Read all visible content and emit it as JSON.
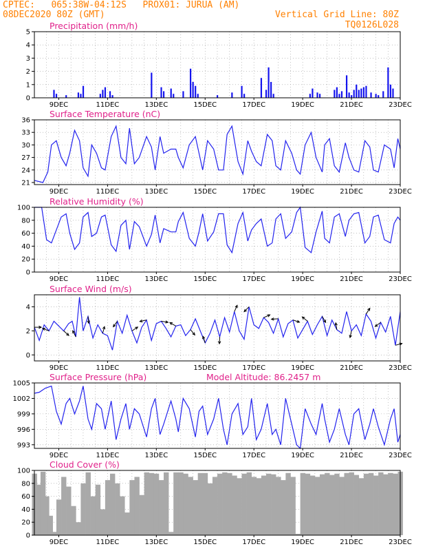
{
  "header": {
    "line1_left": "CPTEC:   065:38W-04:12S   PROX01: JURUA (AM)",
    "line2_left": "08DEC2020 80Z (GMT)",
    "line2_right": "Vertical Grid Line: 80Z",
    "line3_right": "TQ0126L028"
  },
  "colors": {
    "header": "#ff8000",
    "title": "#e0218a",
    "series": "#2222ee",
    "cloud": "#a9a9a9"
  },
  "chart_data": [
    {
      "type": "bar",
      "title": "Precipitation (mm/h)",
      "xticks": [
        "9DEC",
        "11DEC",
        "13DEC",
        "15DEC",
        "17DEC",
        "19DEC",
        "21DEC",
        "23DEC"
      ],
      "ylim": [
        0,
        5
      ],
      "yticks": [
        "0",
        "1",
        "2",
        "3",
        "4",
        "5"
      ],
      "x_days": [
        8.8,
        8.9,
        9.3,
        9.8,
        9.9,
        10.0,
        10.7,
        10.8,
        10.9,
        11.1,
        11.2,
        12.8,
        13.2,
        13.3,
        13.6,
        13.7,
        14.1,
        14.4,
        14.5,
        14.6,
        14.7,
        15.5,
        16.1,
        16.5,
        16.6,
        17.3,
        17.5,
        17.6,
        17.7,
        17.8,
        19.3,
        19.4,
        19.6,
        19.7,
        20.3,
        20.4,
        20.5,
        20.6,
        20.8,
        20.9,
        21.0,
        21.1,
        21.2,
        21.3,
        21.4,
        21.5,
        21.6,
        21.8,
        22.0,
        22.1,
        22.3,
        22.5,
        22.6,
        22.7
      ],
      "values": [
        0.6,
        0.3,
        0.2,
        0.4,
        0.3,
        0.9,
        0.3,
        0.6,
        0.8,
        0.5,
        0.2,
        1.9,
        0.8,
        0.5,
        0.7,
        0.3,
        0.5,
        2.2,
        1.2,
        0.9,
        0.3,
        0.2,
        0.4,
        0.9,
        0.3,
        1.5,
        0.6,
        2.3,
        1.2,
        0.3,
        0.3,
        0.7,
        0.4,
        0.3,
        0.6,
        0.8,
        0.3,
        0.5,
        1.7,
        0.4,
        0.2,
        0.6,
        1.0,
        0.6,
        0.7,
        0.8,
        0.9,
        0.4,
        0.3,
        0.2,
        0.5,
        2.3,
        1.0,
        0.7
      ]
    },
    {
      "type": "line",
      "title": "Surface Temperature (nC)",
      "xticks": [
        "9DEC",
        "11DEC",
        "13DEC",
        "15DEC",
        "17DEC",
        "19DEC",
        "21DEC",
        "23DEC"
      ],
      "ylim": [
        20.5,
        36
      ],
      "yticks": [
        "21",
        "24",
        "27",
        "30",
        "33",
        "36"
      ],
      "x": [
        8.0,
        8.35,
        8.55,
        8.7,
        8.9,
        9.1,
        9.3,
        9.45,
        9.65,
        9.85,
        10.0,
        10.2,
        10.35,
        10.55,
        10.75,
        10.9,
        11.15,
        11.35,
        11.55,
        11.75,
        11.9,
        12.1,
        12.3,
        12.6,
        12.8,
        12.95,
        13.15,
        13.3,
        13.6,
        13.8,
        13.9,
        14.1,
        14.35,
        14.6,
        14.75,
        14.9,
        15.1,
        15.35,
        15.55,
        15.75,
        15.9,
        16.1,
        16.35,
        16.55,
        16.75,
        16.9,
        17.1,
        17.3,
        17.55,
        17.75,
        17.9,
        18.1,
        18.3,
        18.55,
        18.75,
        18.9,
        19.1,
        19.35,
        19.55,
        19.8,
        19.9,
        20.1,
        20.3,
        20.5,
        20.75,
        20.9,
        21.1,
        21.3,
        21.55,
        21.75,
        21.9,
        22.1,
        22.35,
        22.6,
        22.75,
        22.9,
        23.0
      ],
      "y": [
        21.5,
        21.0,
        23.5,
        30,
        31,
        27,
        25,
        28,
        33.5,
        31,
        24.5,
        22.5,
        30,
        28,
        24.5,
        24,
        32,
        34.5,
        27,
        25.5,
        34,
        25.5,
        27,
        32,
        29.5,
        24,
        32,
        28,
        29,
        29,
        27,
        24.5,
        30,
        32,
        28,
        24,
        31,
        29,
        24,
        24,
        32.5,
        34.5,
        26,
        23,
        31,
        28.5,
        26,
        25,
        32.5,
        31,
        25,
        24,
        31,
        28,
        24,
        23,
        30,
        33,
        27,
        23.5,
        30,
        31.5,
        25,
        23.5,
        30.5,
        27,
        24,
        23.5,
        31,
        29.5,
        24,
        23.5,
        30,
        29,
        24.5,
        31.5,
        29
      ]
    },
    {
      "type": "line",
      "title": "Relative Humidity (%)",
      "xticks": [
        "9DEC",
        "11DEC",
        "13DEC",
        "15DEC",
        "17DEC",
        "19DEC",
        "21DEC",
        "23DEC"
      ],
      "ylim": [
        0,
        100
      ],
      "yticks": [
        "0",
        "20",
        "40",
        "60",
        "80",
        "100"
      ],
      "x": [
        8.0,
        8.3,
        8.5,
        8.7,
        8.9,
        9.1,
        9.3,
        9.45,
        9.65,
        9.85,
        10.0,
        10.2,
        10.35,
        10.55,
        10.75,
        10.9,
        11.15,
        11.35,
        11.55,
        11.75,
        11.9,
        12.1,
        12.3,
        12.6,
        12.8,
        12.95,
        13.15,
        13.3,
        13.6,
        13.8,
        13.9,
        14.1,
        14.35,
        14.6,
        14.75,
        14.9,
        15.1,
        15.35,
        15.55,
        15.75,
        15.9,
        16.1,
        16.35,
        16.55,
        16.75,
        16.9,
        17.1,
        17.3,
        17.55,
        17.75,
        17.9,
        18.1,
        18.3,
        18.55,
        18.75,
        18.9,
        19.1,
        19.35,
        19.55,
        19.8,
        19.9,
        20.1,
        20.3,
        20.5,
        20.75,
        20.9,
        21.1,
        21.3,
        21.55,
        21.75,
        21.9,
        22.1,
        22.35,
        22.6,
        22.75,
        22.9,
        23.0
      ],
      "y": [
        100,
        100,
        50,
        45,
        65,
        85,
        90,
        60,
        35,
        45,
        85,
        92,
        55,
        60,
        85,
        88,
        42,
        32,
        72,
        80,
        35,
        78,
        70,
        40,
        58,
        88,
        45,
        67,
        62,
        62,
        78,
        92,
        52,
        40,
        62,
        90,
        48,
        62,
        90,
        90,
        42,
        30,
        75,
        92,
        48,
        65,
        75,
        82,
        40,
        45,
        82,
        90,
        52,
        62,
        92,
        100,
        38,
        30,
        62,
        94,
        52,
        45,
        85,
        90,
        55,
        80,
        90,
        92,
        45,
        55,
        85,
        88,
        50,
        45,
        75,
        85,
        80
      ]
    },
    {
      "type": "line",
      "title": "Surface Wind (m/s)",
      "xticks": [
        "9DEC",
        "11DEC",
        "13DEC",
        "15DEC",
        "17DEC",
        "19DEC",
        "21DEC",
        "23DEC"
      ],
      "ylim": [
        -0.5,
        5
      ],
      "yticks": [
        "0",
        "2",
        "4"
      ],
      "x": [
        8.0,
        8.2,
        8.4,
        8.6,
        8.8,
        9.0,
        9.2,
        9.4,
        9.55,
        9.7,
        9.85,
        10.0,
        10.2,
        10.4,
        10.6,
        10.8,
        11.0,
        11.2,
        11.4,
        11.6,
        11.8,
        12.0,
        12.2,
        12.4,
        12.6,
        12.8,
        13.0,
        13.2,
        13.4,
        13.6,
        13.8,
        14.0,
        14.2,
        14.4,
        14.6,
        14.8,
        15.0,
        15.2,
        15.4,
        15.6,
        15.8,
        16.0,
        16.2,
        16.4,
        16.6,
        16.8,
        17.0,
        17.2,
        17.4,
        17.6,
        17.8,
        18.0,
        18.2,
        18.4,
        18.6,
        18.8,
        19.0,
        19.2,
        19.4,
        19.6,
        19.8,
        20.0,
        20.2,
        20.4,
        20.6,
        20.8,
        21.0,
        21.2,
        21.4,
        21.6,
        21.8,
        22.0,
        22.2,
        22.4,
        22.6,
        22.8,
        23.0
      ],
      "y": [
        2.3,
        1.2,
        2.5,
        2.0,
        2.8,
        2.4,
        2.0,
        2.6,
        2.8,
        1.5,
        4.8,
        2.0,
        3.2,
        1.4,
        2.5,
        1.8,
        1.6,
        0.4,
        2.8,
        1.8,
        3.3,
        2.0,
        1.0,
        2.3,
        2.9,
        1.2,
        2.6,
        2.8,
        2.2,
        1.5,
        2.4,
        2.5,
        1.6,
        2.1,
        3.0,
        2.0,
        1.0,
        1.8,
        2.9,
        1.5,
        3.1,
        1.9,
        3.6,
        2.0,
        1.3,
        4.0,
        2.5,
        2.2,
        3.1,
        2.7,
        1.8,
        3.0,
        1.5,
        2.6,
        2.9,
        1.4,
        2.1,
        2.8,
        1.7,
        2.5,
        3.2,
        1.6,
        2.9,
        2.1,
        1.8,
        3.6,
        2.0,
        2.5,
        1.6,
        3.4,
        2.8,
        1.4,
        2.7,
        1.9,
        3.2,
        0.8,
        3.6
      ]
    },
    {
      "type": "line",
      "title": "Surface Pressure (hPa)",
      "annotation": "Model Altitude: 86.2457  m",
      "xticks": [
        "9DEC",
        "11DEC",
        "13DEC",
        "15DEC",
        "17DEC",
        "19DEC",
        "21DEC",
        "23DEC"
      ],
      "ylim": [
        992.3,
        1005
      ],
      "yticks": [
        "993",
        "996",
        "999",
        "1002",
        "1005"
      ],
      "x": [
        8.0,
        8.2,
        8.45,
        8.7,
        8.9,
        9.1,
        9.3,
        9.45,
        9.65,
        9.85,
        10.0,
        10.2,
        10.35,
        10.55,
        10.75,
        10.9,
        11.15,
        11.35,
        11.55,
        11.75,
        11.9,
        12.1,
        12.3,
        12.6,
        12.8,
        12.95,
        13.15,
        13.3,
        13.6,
        13.8,
        13.9,
        14.1,
        14.35,
        14.6,
        14.75,
        14.9,
        15.1,
        15.35,
        15.55,
        15.75,
        15.9,
        16.1,
        16.35,
        16.55,
        16.75,
        16.9,
        17.1,
        17.3,
        17.55,
        17.75,
        17.9,
        18.1,
        18.3,
        18.55,
        18.75,
        18.9,
        19.1,
        19.35,
        19.55,
        19.8,
        19.9,
        20.1,
        20.3,
        20.5,
        20.75,
        20.9,
        21.1,
        21.3,
        21.55,
        21.75,
        21.9,
        22.1,
        22.35,
        22.6,
        22.75,
        22.9,
        23.0
      ],
      "y": [
        1003,
        1003.2,
        1004,
        1004.4,
        999.5,
        997,
        1001,
        1002,
        999,
        1001.5,
        1004.4,
        998,
        996,
        1001,
        1000,
        996,
        1001.5,
        994,
        998,
        1001,
        996,
        1000,
        999,
        994.5,
        1000,
        1002,
        995,
        997,
        1001.5,
        998,
        995.5,
        1002,
        1000,
        994.5,
        999.5,
        1000.5,
        995,
        998,
        1002,
        996,
        993,
        999,
        1001,
        995,
        996.5,
        1002,
        994,
        996,
        1001,
        995,
        996,
        993,
        1002,
        997,
        993,
        992.3,
        1000,
        997,
        995,
        1001,
        998,
        993.5,
        996,
        1000,
        995,
        993,
        999,
        1000,
        994,
        997,
        1000,
        996.5,
        993,
        998,
        1000,
        993.5,
        995
      ]
    },
    {
      "type": "area",
      "title": "Cloud Cover (%)",
      "xticks": [
        "9DEC",
        "11DEC",
        "13DEC",
        "15DEC",
        "17DEC",
        "19DEC",
        "21DEC",
        "23DEC"
      ],
      "ylim": [
        0,
        100
      ],
      "yticks": [
        "0",
        "20",
        "40",
        "60",
        "80",
        "100"
      ],
      "x": [
        8.0,
        8.2,
        8.35,
        8.5,
        8.65,
        8.8,
        9.0,
        9.2,
        9.4,
        9.6,
        9.8,
        10.0,
        10.2,
        10.4,
        10.6,
        10.8,
        11.0,
        11.2,
        11.4,
        11.6,
        11.8,
        12.0,
        12.2,
        12.4,
        12.6,
        12.8,
        13.0,
        13.2,
        13.4,
        13.6,
        13.8,
        14.0,
        14.2,
        14.4,
        14.6,
        14.8,
        15.0,
        15.2,
        15.4,
        15.6,
        15.8,
        16.0,
        16.2,
        16.4,
        16.6,
        16.8,
        17.0,
        17.2,
        17.4,
        17.6,
        17.8,
        18.0,
        18.2,
        18.4,
        18.6,
        18.8,
        19.0,
        19.2,
        19.4,
        19.6,
        19.8,
        20.0,
        20.2,
        20.4,
        20.6,
        20.8,
        21.0,
        21.2,
        21.4,
        21.6,
        21.8,
        22.0,
        22.2,
        22.4,
        22.6,
        22.8,
        23.0
      ],
      "y": [
        95,
        78,
        98,
        60,
        30,
        5,
        55,
        90,
        75,
        45,
        20,
        80,
        97,
        60,
        78,
        40,
        85,
        95,
        80,
        60,
        35,
        85,
        90,
        62,
        97,
        96,
        95,
        85,
        97,
        5,
        97,
        97,
        95,
        90,
        85,
        96,
        96,
        80,
        90,
        95,
        97,
        96,
        92,
        88,
        95,
        97,
        90,
        88,
        92,
        95,
        94,
        90,
        85,
        96,
        90,
        2,
        96,
        95,
        92,
        90,
        94,
        96,
        93,
        95,
        90,
        96,
        97,
        93,
        88,
        95,
        96,
        92,
        97,
        94,
        96,
        95,
        98
      ]
    }
  ]
}
